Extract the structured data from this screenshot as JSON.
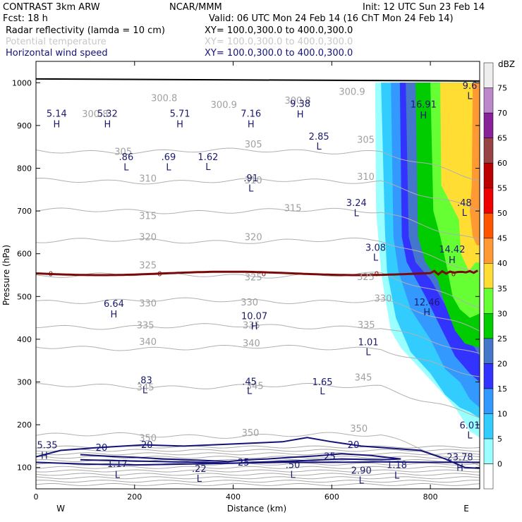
{
  "header": {
    "line1_left": "CONTRAST   3km ARW",
    "line1_mid": "NCAR/MMM",
    "line1_right": "Init: 12 UTC Sun 23 Feb 14",
    "line2_left": "Fcst:    18 h",
    "line2_right": "Valid: 06 UTC Mon 24 Feb 14 (16 ChT Mon 24 Feb 14)",
    "fields": [
      {
        "name": "Radar reflectivity (lamda = 10 cm)",
        "xy": "XY= 100.0,300.0 to 400.0,300.0",
        "color": "#000000"
      },
      {
        "name": "Potential temperature",
        "xy": "XY= 100.0,300.0 to 400.0,300.0",
        "color": "#c8c8c8"
      },
      {
        "name": "Horizontal wind speed",
        "xy": "XY= 100.0,300.0 to 400.0,300.0",
        "color": "#12127a"
      }
    ]
  },
  "chart_data": {
    "type": "contour-cross-section",
    "xlabel": "Distance (km)",
    "ylabel": "Pressure (hPa)",
    "xlim": [
      0,
      900
    ],
    "ylim": [
      1050,
      50
    ],
    "x_ticks": [
      "0",
      "200",
      "400",
      "600",
      "800"
    ],
    "x_tick_values": [
      0,
      200,
      400,
      600,
      800
    ],
    "y_ticks": [
      "100",
      "200",
      "300",
      "400",
      "500",
      "600",
      "700",
      "800",
      "900",
      "1000"
    ],
    "y_tick_values": [
      100,
      200,
      300,
      400,
      500,
      600,
      700,
      800,
      900,
      1000
    ],
    "end_labels": {
      "west": "W",
      "east": "E"
    },
    "colorbar": {
      "unit": "dBZ",
      "levels": [
        "0",
        "5",
        "10",
        "15",
        "20",
        "25",
        "30",
        "35",
        "40",
        "45",
        "50",
        "55",
        "60",
        "65",
        "70",
        "75"
      ],
      "colors": [
        "#ffffff",
        "#99ffff",
        "#33ccff",
        "#3399ff",
        "#3333ff",
        "#4477cc",
        "#00cc00",
        "#66ff33",
        "#ffdd33",
        "#ff9933",
        "#ff5500",
        "#ee0000",
        "#bb0000",
        "#994444",
        "#882299",
        "#bb88cc",
        "#eeeeee"
      ]
    },
    "theta_contours": [
      {
        "label": "350",
        "p": 175
      },
      {
        "label": "345",
        "p": 290
      },
      {
        "label": "340",
        "p": 380
      },
      {
        "label": "335",
        "p": 430
      },
      {
        "label": "330",
        "p": 490
      },
      {
        "label": "325",
        "p": 550
      },
      {
        "label": "320",
        "p": 630
      },
      {
        "label": "315",
        "p": 700
      },
      {
        "label": "310",
        "p": 770
      },
      {
        "label": "305",
        "p": 840
      }
    ],
    "theta_labels": [
      {
        "text": "350",
        "x": 227,
        "p": 168
      },
      {
        "text": "350",
        "x": 435,
        "p": 180
      },
      {
        "text": "350",
        "x": 655,
        "p": 190
      },
      {
        "text": "345",
        "x": 222,
        "p": 287
      },
      {
        "text": "345",
        "x": 444,
        "p": 290
      },
      {
        "text": "345",
        "x": 664,
        "p": 310
      },
      {
        "text": "340",
        "x": 227,
        "p": 393
      },
      {
        "text": "340",
        "x": 437,
        "p": 390
      },
      {
        "text": "335",
        "x": 222,
        "p": 432
      },
      {
        "text": "335",
        "x": 437,
        "p": 432
      },
      {
        "text": "335",
        "x": 670,
        "p": 433
      },
      {
        "text": "330",
        "x": 227,
        "p": 483
      },
      {
        "text": "330",
        "x": 433,
        "p": 486
      },
      {
        "text": "330",
        "x": 704,
        "p": 495
      },
      {
        "text": "325",
        "x": 227,
        "p": 572
      },
      {
        "text": "325",
        "x": 441,
        "p": 544
      },
      {
        "text": "325",
        "x": 669,
        "p": 545
      },
      {
        "text": "320",
        "x": 227,
        "p": 638
      },
      {
        "text": "320",
        "x": 441,
        "p": 638
      },
      {
        "text": "315",
        "x": 227,
        "p": 688
      },
      {
        "text": "315",
        "x": 521,
        "p": 706
      },
      {
        "text": "310",
        "x": 227,
        "p": 775
      },
      {
        "text": "310",
        "x": 441,
        "p": 771
      },
      {
        "text": "310",
        "x": 669,
        "p": 779
      },
      {
        "text": "305",
        "x": 177,
        "p": 838
      },
      {
        "text": "305",
        "x": 441,
        "p": 855
      },
      {
        "text": "305",
        "x": 669,
        "p": 866
      },
      {
        "text": "300.8",
        "x": 120,
        "p": 926
      },
      {
        "text": "300.8",
        "x": 260,
        "p": 963
      },
      {
        "text": "300.9",
        "x": 381,
        "p": 948
      },
      {
        "text": "300.8",
        "x": 531,
        "p": 958
      },
      {
        "text": "300.9",
        "x": 641,
        "p": 978
      }
    ],
    "wind_contours": [
      "20",
      "25"
    ],
    "wind_labels": [
      {
        "text": "20",
        "x": 133,
        "p": 147
      },
      {
        "text": "20",
        "x": 225,
        "p": 154
      },
      {
        "text": "25",
        "x": 421,
        "p": 113
      },
      {
        "text": "25",
        "x": 596,
        "p": 127
      },
      {
        "text": "20",
        "x": 644,
        "p": 154
      }
    ],
    "extrema": [
      {
        "kind": "L",
        "value": "1.17",
        "x": 165,
        "p": 84,
        "value_p": 109
      },
      {
        "kind": "L",
        "value": ".22",
        "x": 331,
        "p": 75,
        "value_p": 98
      },
      {
        "kind": "L",
        "value": ".50",
        "x": 521,
        "p": 84,
        "value_p": 107
      },
      {
        "kind": "L",
        "value": "2.90",
        "x": 660,
        "p": 71,
        "value_p": 94
      },
      {
        "kind": "L",
        "value": "1.18",
        "x": 732,
        "p": 82,
        "value_p": 107
      },
      {
        "kind": "H",
        "value": "23.78",
        "x": 860,
        "p": 100,
        "value_p": 125
      },
      {
        "kind": "H",
        "value": "25.35",
        "x": 17,
        "p": 128,
        "value_p": 153
      },
      {
        "kind": "L",
        "value": "6.01",
        "x": 880,
        "p": 176,
        "value_p": 199
      },
      {
        "kind": "L",
        "value": ".83",
        "x": 221,
        "p": 282,
        "value_p": 305
      },
      {
        "kind": "L",
        "value": ".45",
        "x": 433,
        "p": 280,
        "value_p": 302
      },
      {
        "kind": "L",
        "value": "1.65",
        "x": 581,
        "p": 279,
        "value_p": 301
      },
      {
        "kind": "L",
        "value": "1.01",
        "x": 674,
        "p": 371,
        "value_p": 394
      },
      {
        "kind": "H",
        "value": "10.07",
        "x": 443,
        "p": 431,
        "value_p": 455
      },
      {
        "kind": "H",
        "value": "6.64",
        "x": 158,
        "p": 459,
        "value_p": 484
      },
      {
        "kind": "H",
        "value": "12.46",
        "x": 793,
        "p": 464,
        "value_p": 487
      },
      {
        "kind": "H",
        "value": "14.42",
        "x": 844,
        "p": 586,
        "value_p": 611
      },
      {
        "kind": "L",
        "value": "3.08",
        "x": 689,
        "p": 592,
        "value_p": 615
      },
      {
        "kind": "L",
        "value": "3.24",
        "x": 650,
        "p": 696,
        "value_p": 720
      },
      {
        "kind": "L",
        "value": ".48",
        "x": 869,
        "p": 697,
        "value_p": 720
      },
      {
        "kind": "L",
        "value": ".91",
        "x": 436,
        "p": 754,
        "value_p": 778
      },
      {
        "kind": "L",
        "value": ".86",
        "x": 183,
        "p": 803,
        "value_p": 827
      },
      {
        "kind": "L",
        "value": ".69",
        "x": 269,
        "p": 803,
        "value_p": 827
      },
      {
        "kind": "L",
        "value": "1.62",
        "x": 349,
        "p": 804,
        "value_p": 827
      },
      {
        "kind": "L",
        "value": "2.85",
        "x": 574,
        "p": 852,
        "value_p": 875
      },
      {
        "kind": "H",
        "value": "5.14",
        "x": 42,
        "p": 904,
        "value_p": 929
      },
      {
        "kind": "H",
        "value": "5.32",
        "x": 145,
        "p": 904,
        "value_p": 929
      },
      {
        "kind": "H",
        "value": "5.71",
        "x": 292,
        "p": 904,
        "value_p": 929
      },
      {
        "kind": "H",
        "value": "7.16",
        "x": 436,
        "p": 904,
        "value_p": 929
      },
      {
        "kind": "H",
        "value": "9.38",
        "x": 536,
        "p": 927,
        "value_p": 952
      },
      {
        "kind": "H",
        "value": "16.91",
        "x": 786,
        "p": 925,
        "value_p": 950
      },
      {
        "kind": "L",
        "value": "9.6",
        "x": 880,
        "p": 970,
        "value_p": 994
      }
    ],
    "zero_line_label": "0",
    "zero_line_label_x": [
      30,
      251,
      462,
      691,
      847
    ]
  }
}
